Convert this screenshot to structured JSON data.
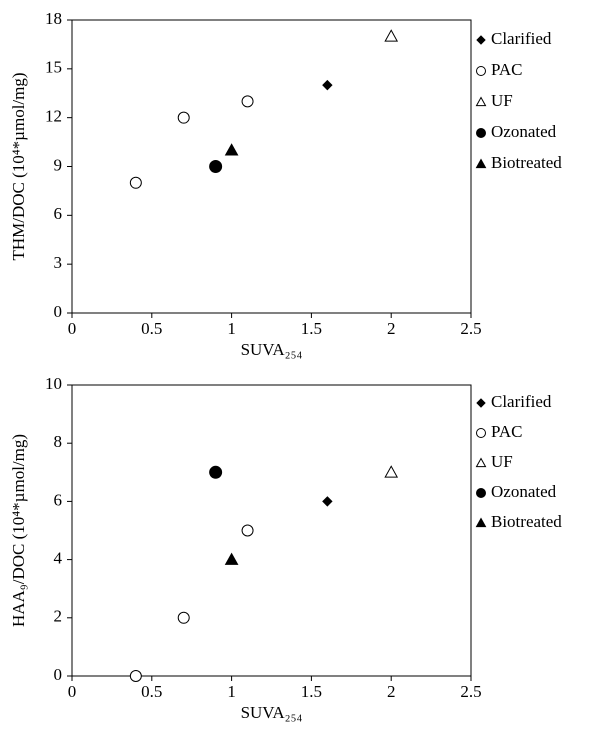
{
  "chart_data": [
    {
      "type": "scatter",
      "xlabel": "SUVA₂₅₄",
      "ylabel": "THM/DOC (10⁴*µmol/mg)",
      "xlim": [
        0,
        2.5
      ],
      "xticks": [
        0,
        0.5,
        1,
        1.5,
        2,
        2.5
      ],
      "ylim": [
        0,
        18
      ],
      "yticks": [
        0,
        3,
        6,
        9,
        12,
        15,
        18
      ],
      "series": [
        {
          "name": "Clarified",
          "marker": "diamond",
          "color": "#000000",
          "x": [
            1.6
          ],
          "y": [
            14
          ]
        },
        {
          "name": "PAC",
          "marker": "circle-open",
          "color": "#000000",
          "x": [
            0.4,
            0.7,
            1.1
          ],
          "y": [
            8,
            12,
            13
          ]
        },
        {
          "name": "UF",
          "marker": "triangle-open",
          "color": "#000000",
          "x": [
            2
          ],
          "y": [
            17
          ]
        },
        {
          "name": "Ozonated",
          "marker": "circle",
          "color": "#000000",
          "x": [
            0.9
          ],
          "y": [
            9
          ]
        },
        {
          "name": "Biotreated",
          "marker": "triangle",
          "color": "#000000",
          "x": [
            1
          ],
          "y": [
            10
          ]
        }
      ]
    },
    {
      "type": "scatter",
      "xlabel": "SUVA₂₅₄",
      "ylabel": "HAA₉/DOC (10⁴*µmol/mg)",
      "xlim": [
        0,
        2.5
      ],
      "xticks": [
        0,
        0.5,
        1,
        1.5,
        2,
        2.5
      ],
      "ylim": [
        0,
        10
      ],
      "yticks": [
        0,
        2,
        4,
        6,
        8,
        10
      ],
      "series": [
        {
          "name": "Clarified",
          "marker": "diamond",
          "color": "#000000",
          "x": [
            1.6
          ],
          "y": [
            6
          ]
        },
        {
          "name": "PAC",
          "marker": "circle-open",
          "color": "#000000",
          "x": [
            0.4,
            0.7,
            1.1
          ],
          "y": [
            0,
            2,
            5
          ]
        },
        {
          "name": "UF",
          "marker": "triangle-open",
          "color": "#000000",
          "x": [
            2
          ],
          "y": [
            7
          ]
        },
        {
          "name": "Ozonated",
          "marker": "circle",
          "color": "#000000",
          "x": [
            0.9
          ],
          "y": [
            7
          ]
        },
        {
          "name": "Biotreated",
          "marker": "triangle",
          "color": "#000000",
          "x": [
            1
          ],
          "y": [
            4
          ]
        }
      ]
    }
  ]
}
